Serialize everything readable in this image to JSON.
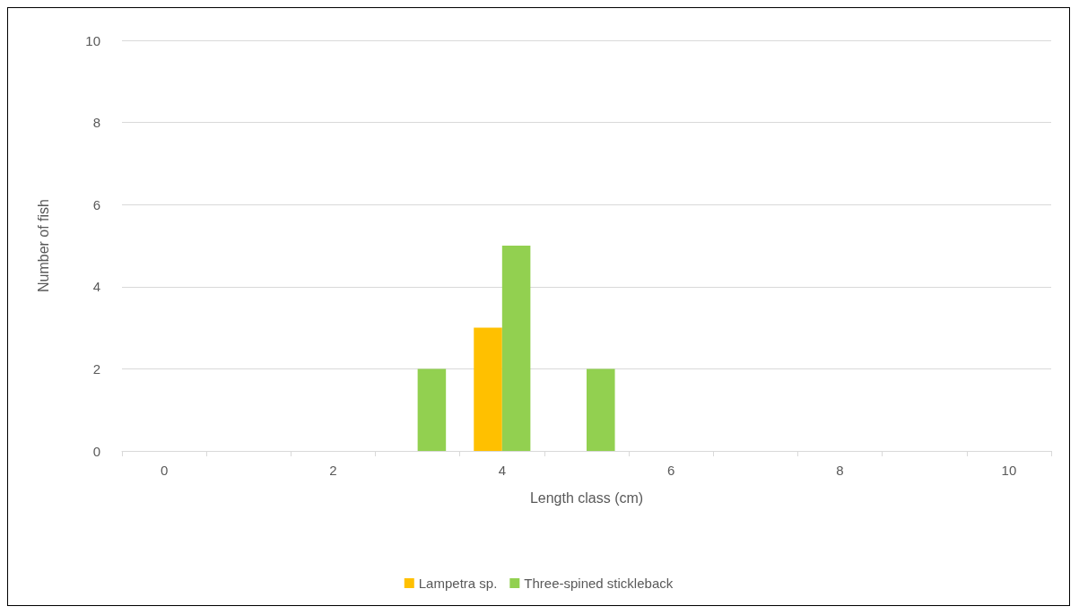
{
  "chart_data": {
    "type": "bar",
    "xlabel": "Length class (cm)",
    "ylabel": "Number of fish",
    "categories": [
      "0",
      null,
      "2",
      null,
      "4",
      null,
      "6",
      null,
      "8",
      null,
      "10"
    ],
    "series": [
      {
        "name": "Lampetra sp.",
        "color": "#ffc000",
        "values": [
          0,
          0,
          0,
          0,
          3,
          0,
          0,
          0,
          0,
          0,
          0
        ]
      },
      {
        "name": "Three-spined stickleback",
        "color": "#92d050",
        "values": [
          0,
          0,
          0,
          2,
          5,
          2,
          0,
          0,
          0,
          0,
          0
        ]
      }
    ],
    "ylim": [
      0,
      10
    ],
    "yticks": [
      0,
      2,
      4,
      6,
      8,
      10
    ],
    "grid": "y",
    "legend": "bottom"
  }
}
